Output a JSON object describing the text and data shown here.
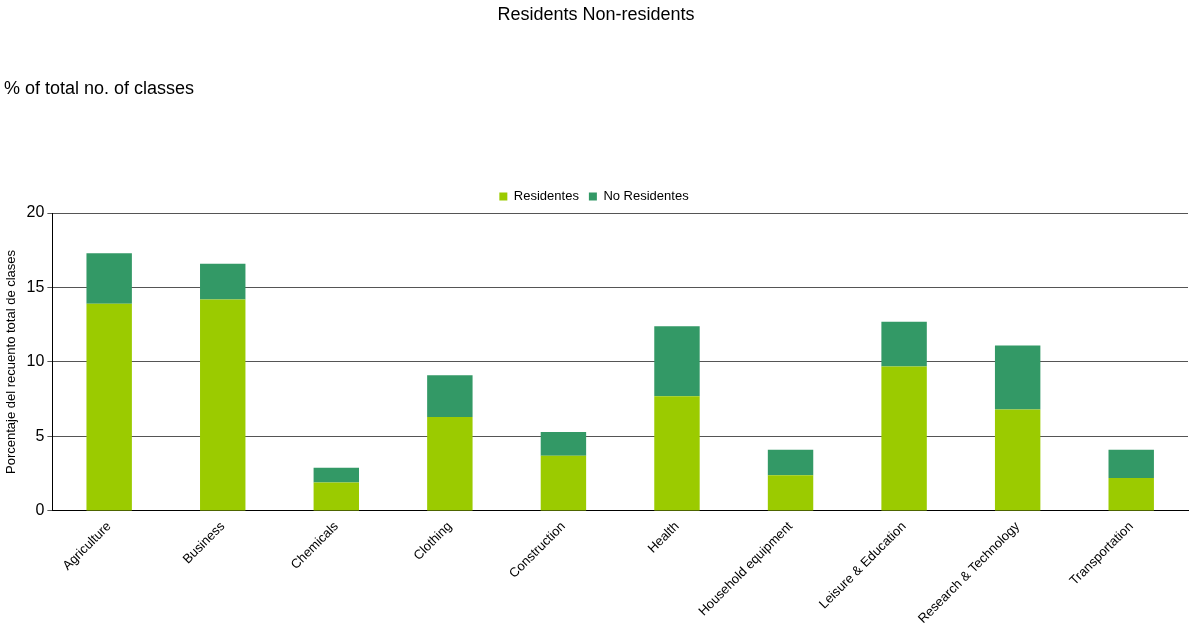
{
  "chart_data": {
    "type": "bar",
    "title": "Residents   Non-residents",
    "subtitle": "% of total no. of classes",
    "ylabel": "Porcentaje del recuento total de clases",
    "categories": [
      "Agriculture",
      "Business",
      "Chemicals",
      "Clothing",
      "Construction",
      "Health",
      "Household equipment",
      "Leisure & Education",
      "Research & Technology",
      "Transportation"
    ],
    "series": [
      {
        "name": "Residentes",
        "color": "#9bcb00",
        "values": [
          13.9,
          14.2,
          1.9,
          6.3,
          3.7,
          7.7,
          2.4,
          9.7,
          6.8,
          2.2
        ]
      },
      {
        "name": "No Residentes",
        "color": "#339966",
        "values": [
          3.4,
          2.4,
          1.0,
          2.8,
          1.6,
          4.7,
          1.7,
          3.0,
          4.3,
          1.9
        ]
      }
    ],
    "stacked": true,
    "ylim": [
      0,
      20
    ],
    "yticks": [
      0,
      5,
      10,
      15,
      20
    ],
    "grid": "y",
    "legend": "top"
  }
}
